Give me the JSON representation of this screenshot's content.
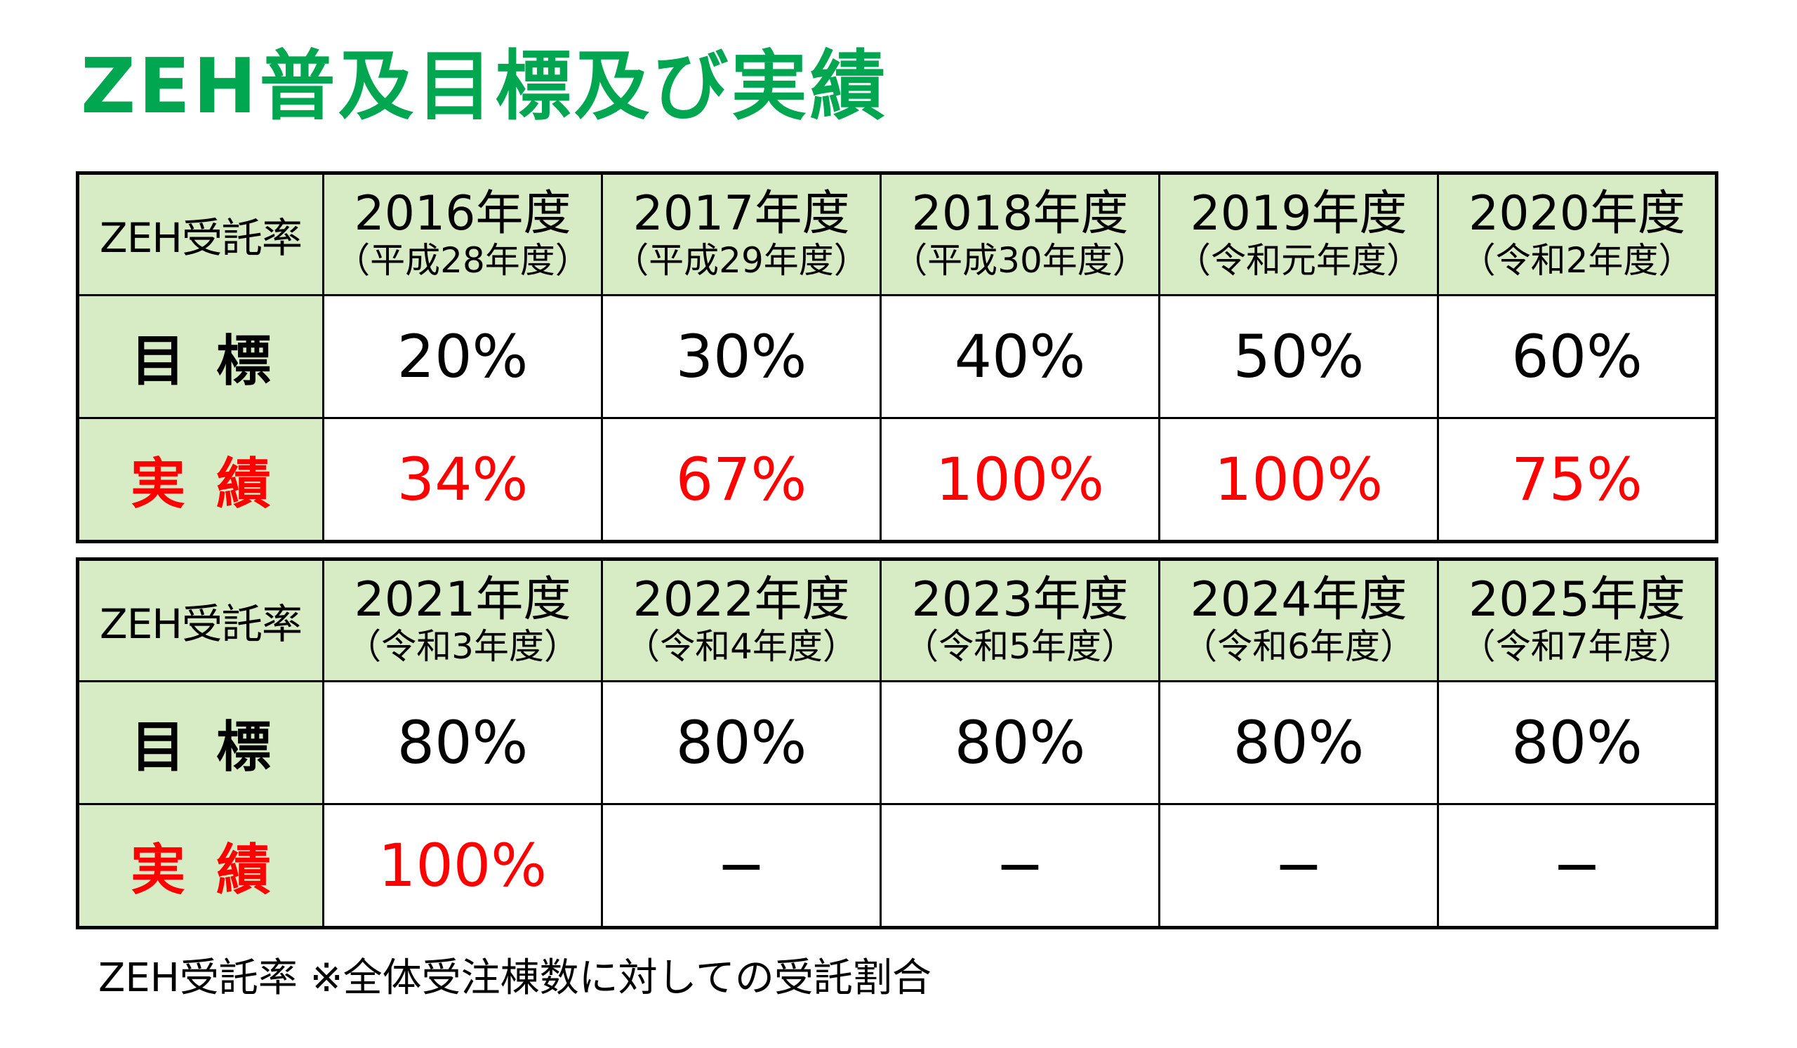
{
  "title": "ZEH普及目標及び実績",
  "colors": {
    "title": "#00a650",
    "header_bg": "#d7ebc5",
    "actual_text": "#ff0000",
    "border": "#000000"
  },
  "tables": [
    {
      "corner_label": "ZEH受託率",
      "years": [
        {
          "year": "2016年度",
          "era": "（平成28年度）"
        },
        {
          "year": "2017年度",
          "era": "（平成29年度）"
        },
        {
          "year": "2018年度",
          "era": "（平成30年度）"
        },
        {
          "year": "2019年度",
          "era": "（令和元年度）"
        },
        {
          "year": "2020年度",
          "era": "（令和2年度）"
        }
      ],
      "target_label": "目標",
      "targets": [
        "20%",
        "30%",
        "40%",
        "50%",
        "60%"
      ],
      "actual_label": "実績",
      "actuals": [
        "34%",
        "67%",
        "100%",
        "100%",
        "75%"
      ]
    },
    {
      "corner_label": "ZEH受託率",
      "years": [
        {
          "year": "2021年度",
          "era": "（令和3年度）"
        },
        {
          "year": "2022年度",
          "era": "（令和4年度）"
        },
        {
          "year": "2023年度",
          "era": "（令和5年度）"
        },
        {
          "year": "2024年度",
          "era": "（令和6年度）"
        },
        {
          "year": "2025年度",
          "era": "（令和7年度）"
        }
      ],
      "target_label": "目標",
      "targets": [
        "80%",
        "80%",
        "80%",
        "80%",
        "80%"
      ],
      "actual_label": "実績",
      "actuals": [
        "100%",
        "−",
        "−",
        "−",
        "−"
      ]
    }
  ],
  "footnote": "ZEH受託率 ※全体受注棟数に対しての受託割合"
}
